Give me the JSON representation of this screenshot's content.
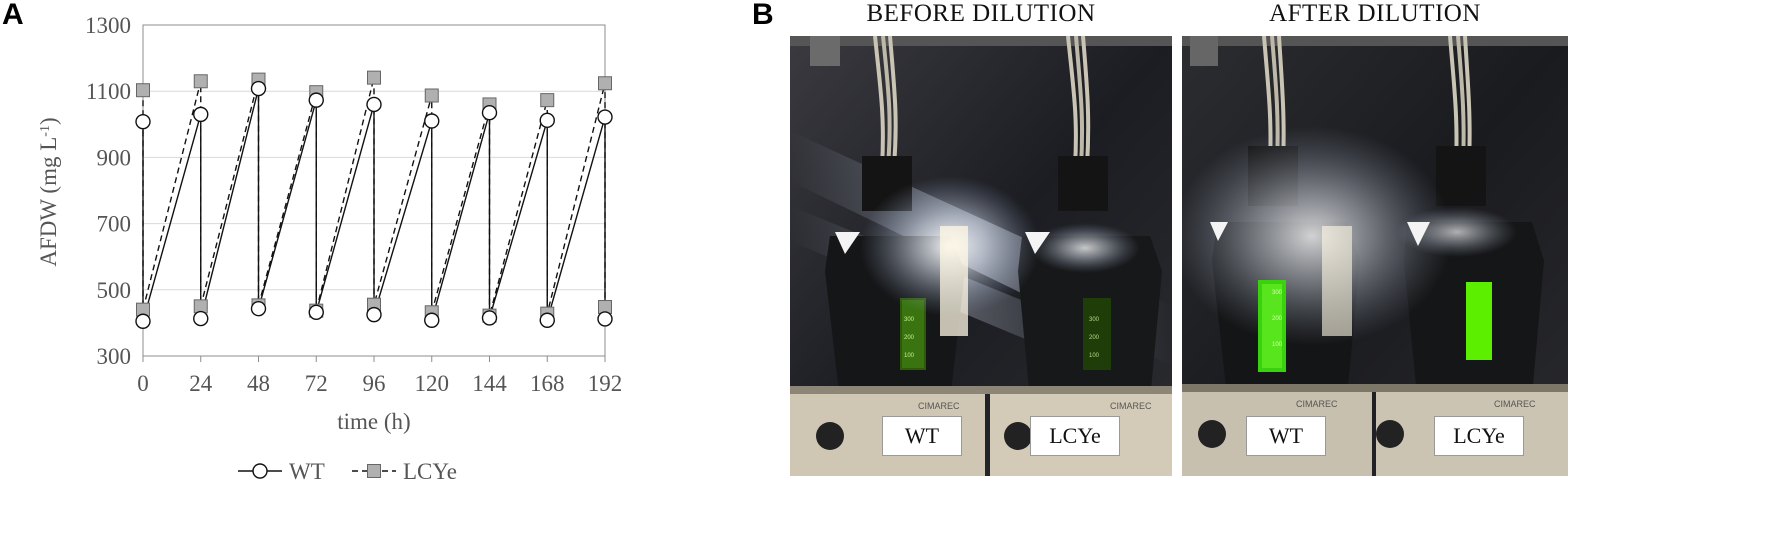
{
  "panel_a": {
    "letter": "A"
  },
  "panel_b": {
    "letter": "B",
    "before_title": "BEFORE DILUTION",
    "after_title": "AFTER DILUTION",
    "labels": {
      "before_left": "WT",
      "before_right": "LCYe",
      "after_left": "WT",
      "after_right": "LCYe"
    },
    "photo_text": {
      "brand": "CIMAREC",
      "scale_300": "300",
      "scale_200": "200",
      "scale_100": "100"
    }
  },
  "chart_data": {
    "type": "line",
    "xlabel": "time (h)",
    "ylabel_main": "AFDW (mg L",
    "ylabel_sup": "-1",
    "ylabel_close": ")",
    "xlim": [
      0,
      192
    ],
    "ylim": [
      300,
      1300
    ],
    "xticks": [
      0,
      24,
      48,
      72,
      96,
      120,
      144,
      168,
      192
    ],
    "yticks": [
      300,
      500,
      700,
      900,
      1100,
      1300
    ],
    "grid": "horizontal",
    "legend_position": "bottom",
    "series": [
      {
        "name": "WT",
        "marker": "circle",
        "line": "solid",
        "x": [
          0,
          0,
          24,
          24,
          48,
          48,
          72,
          72,
          96,
          96,
          120,
          120,
          144,
          144,
          168,
          168,
          192,
          192
        ],
        "y": [
          1008,
          405,
          1030,
          413,
          1108,
          443,
          1073,
          432,
          1060,
          425,
          1010,
          408,
          1035,
          415,
          1012,
          408,
          1022,
          412
        ]
      },
      {
        "name": "LCYe",
        "marker": "square",
        "line": "dashed",
        "x": [
          0,
          0,
          24,
          24,
          48,
          48,
          72,
          72,
          96,
          96,
          120,
          120,
          144,
          144,
          168,
          168,
          192,
          192
        ],
        "y": [
          1103,
          440,
          1130,
          450,
          1135,
          453,
          1097,
          437,
          1141,
          455,
          1087,
          432,
          1060,
          422,
          1073,
          428,
          1124,
          448
        ]
      }
    ]
  }
}
